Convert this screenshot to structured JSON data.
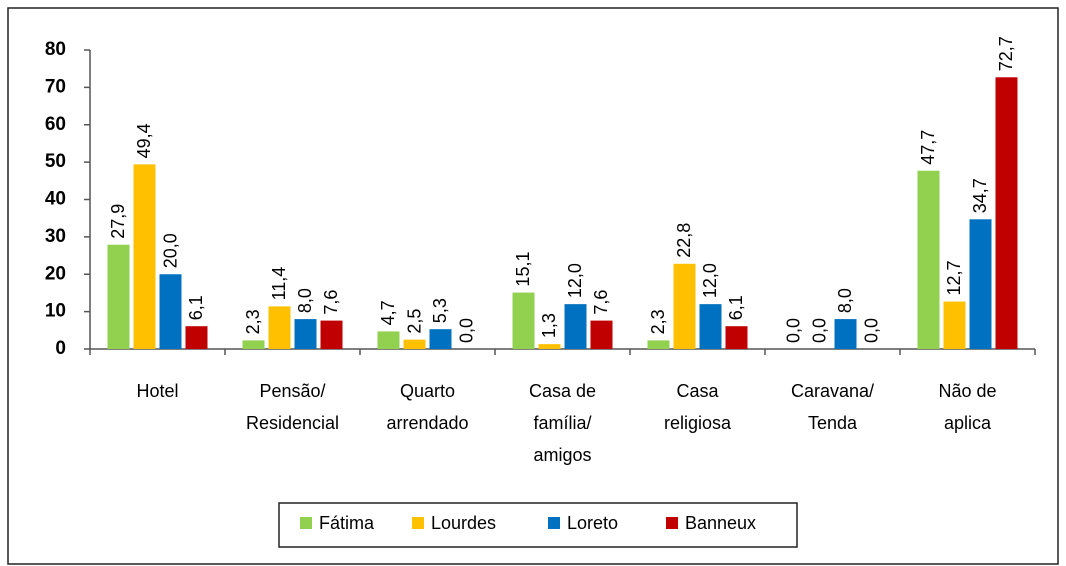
{
  "chart_data": {
    "type": "bar",
    "categories": [
      "Hotel",
      "Pensão/\nResidencial",
      "Quarto\narrendado",
      "Casa de\nfamília/\namigos",
      "Casa\nreligiosa",
      "Caravana/\nTenda",
      "Não de\naplica"
    ],
    "series": [
      {
        "name": "Fátima",
        "color": "#92d050",
        "values": [
          27.9,
          2.3,
          4.7,
          15.1,
          2.3,
          0.0,
          47.7
        ],
        "value_labels": [
          "27,9",
          "2,3",
          "4,7",
          "15,1",
          "2,3",
          "0,0",
          "47,7"
        ]
      },
      {
        "name": "Lourdes",
        "color": "#ffc000",
        "values": [
          49.4,
          11.4,
          2.5,
          1.3,
          22.8,
          0.0,
          12.7
        ],
        "value_labels": [
          "49,4",
          "11,4",
          "2,5",
          "1,3",
          "22,8",
          "0,0",
          "12,7"
        ]
      },
      {
        "name": "Loreto",
        "color": "#0070c0",
        "values": [
          20.0,
          8.0,
          5.3,
          12.0,
          12.0,
          8.0,
          34.7
        ],
        "value_labels": [
          "20,0",
          "8,0",
          "5,3",
          "12,0",
          "12,0",
          "8,0",
          "34,7"
        ]
      },
      {
        "name": "Banneux",
        "color": "#c00000",
        "values": [
          6.1,
          7.6,
          0.0,
          7.6,
          6.1,
          0.0,
          72.7
        ],
        "value_labels": [
          "6,1",
          "7,6",
          "0,0",
          "7,6",
          "6,1",
          "0,0",
          "72,7"
        ]
      }
    ],
    "ylim": [
      0,
      80
    ],
    "yticks": [
      0,
      10,
      20,
      30,
      40,
      50,
      60,
      70,
      80
    ],
    "legend": "bottom"
  }
}
